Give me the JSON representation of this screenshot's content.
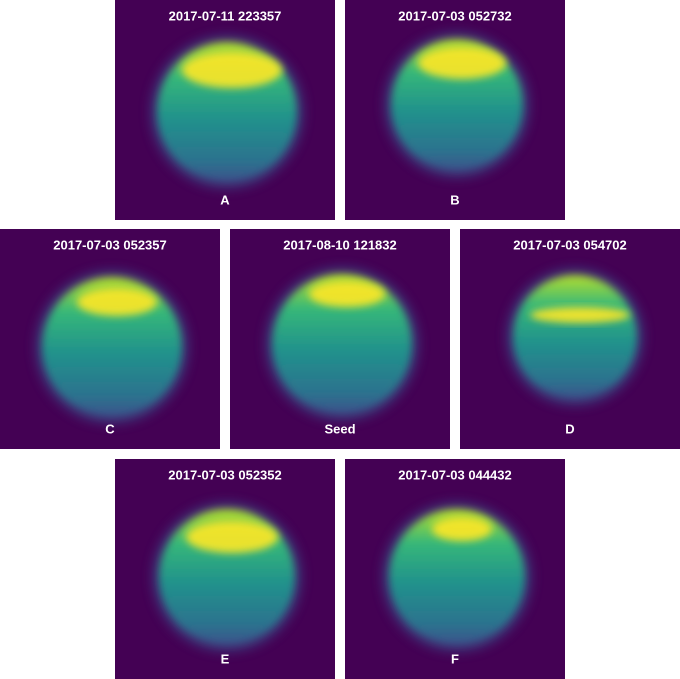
{
  "panels": [
    {
      "title": "2017-07-11 223357",
      "label": "A"
    },
    {
      "title": "2017-07-03 052732",
      "label": "B"
    },
    {
      "title": "2017-07-03 052357",
      "label": "C"
    },
    {
      "title": "2017-08-10 121832",
      "label": "Seed"
    },
    {
      "title": "2017-07-03 054702",
      "label": "D"
    },
    {
      "title": "2017-07-03 052352",
      "label": "E"
    },
    {
      "title": "2017-07-03 044432",
      "label": "F"
    }
  ]
}
